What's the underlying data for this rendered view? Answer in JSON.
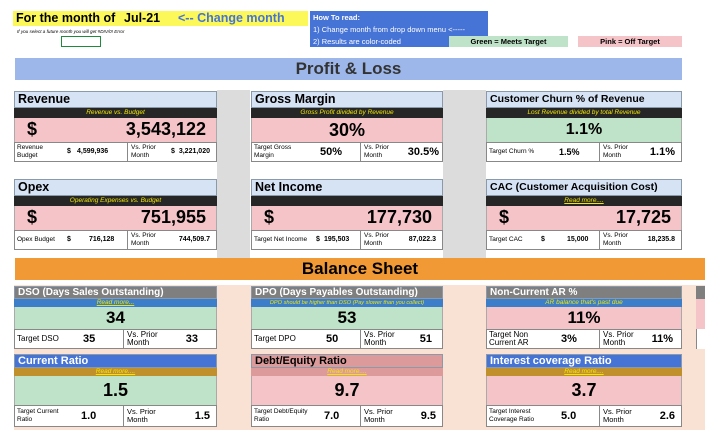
{
  "top": {
    "month_label": "For the month of",
    "month_value": "Jul-21",
    "change_hint": "<-- Change month",
    "future_warning": "If you select a future month you will get #DIV/0! Error",
    "howto_title": "How To read:",
    "howto_1": "1) Change month from drop down menu <-----",
    "howto_2": "2) Results are color-coded",
    "legend_green": "Green = Meets Target",
    "legend_pink": "Pink = Off Target"
  },
  "sections": {
    "pl": "Profit & Loss",
    "bs": "Balance Sheet"
  },
  "colors": {
    "green": "#bfe3c8",
    "pink": "#f5c4c8",
    "peach": "#f7d8c3",
    "header_blue": "#d6e3f5",
    "section_blue": "#9db7ea",
    "section_orange": "#f19a35",
    "gray_hdr": "#7f7f7f",
    "blue_hdr": "#4673d6",
    "rose_hdr": "#dd9a9a",
    "gold_band": "#c0902c"
  },
  "cards": {
    "revenue": {
      "title": "Revenue",
      "sub": "Revenue vs. Budget",
      "currency": "$",
      "value": "3,543,122",
      "target_label": "Revenue Budget",
      "target_cur": "$",
      "target_value": "4,599,936",
      "vs_label": "Vs. Prior Month",
      "vs_cur": "$",
      "vs_value": "3,221,020"
    },
    "gross_margin": {
      "title": "Gross Margin",
      "sub": "Gross Profit divided by Revenue",
      "value": "30%",
      "target_label": "Target Gross Margin",
      "target_value": "50%",
      "vs_label": "Vs. Prior Month",
      "vs_value": "30.5%"
    },
    "churn": {
      "title": "Customer Churn % of Revenue",
      "sub": "Lost Revenue divided by total Revenue",
      "value": "1.1%",
      "target_label": "Target Churn %",
      "target_value": "1.5%",
      "vs_label": "Vs. Prior Month",
      "vs_value": "1.1%"
    },
    "opex": {
      "title": "Opex",
      "sub": "Operating Expenses vs. Budget",
      "currency": "$",
      "value": "751,955",
      "target_label": "Opex Budget",
      "target_cur": "$",
      "target_value": "716,128",
      "vs_label": "Vs. Prior Month",
      "vs_value": "744,509.7"
    },
    "net_income": {
      "title": "Net Income",
      "currency": "$",
      "value": "177,730",
      "target_label": "Target Net Income",
      "target_cur": "$",
      "target_value": "195,503",
      "vs_label": "Vs. Prior Month",
      "vs_value": "87,022.3"
    },
    "cac": {
      "title": "CAC (Customer Acquisition Cost)",
      "sub": "Read more....",
      "currency": "$",
      "value": "17,725",
      "target_label": "Target CAC",
      "target_cur": "$",
      "target_value": "15,000",
      "vs_label": "Vs. Prior Month",
      "vs_value": "18,235.8"
    },
    "dso": {
      "title": "DSO (Days Sales Outstanding)",
      "sub": "Read more...",
      "value": "34",
      "target_label": "Target DSO",
      "target_value": "35",
      "vs_label": "Vs. Prior Month",
      "vs_value": "33"
    },
    "dpo": {
      "title": "DPO (Days Payables Outstanding)",
      "sub": "DPO should be higher than DSO (Pay slower than you collect)",
      "value": "53",
      "target_label": "Target DPO",
      "target_value": "50",
      "vs_label": "Vs. Prior Month",
      "vs_value": "51"
    },
    "noncurrent": {
      "title": "Non-Current AR %",
      "sub": "AR balance that's past due",
      "value": "11%",
      "target_label": "Target Non Current AR",
      "target_value": "3%",
      "vs_label": "Vs. Prior Month",
      "vs_value": "11%"
    },
    "current_ratio": {
      "title": "Current Ratio",
      "sub": "Read more....",
      "value": "1.5",
      "target_label": "Target Current Ratio",
      "target_value": "1.0",
      "vs_label": "Vs. Prior Month",
      "vs_value": "1.5"
    },
    "debt_equity": {
      "title": "Debt/Equity Ratio",
      "sub": "Read more....",
      "value": "9.7",
      "target_label": "Target Debt/Equity Ratio",
      "target_value": "7.0",
      "vs_label": "Vs. Prior Month",
      "vs_value": "9.5"
    },
    "interest": {
      "title": "Interest coverage Ratio",
      "sub": "Read more....",
      "value": "3.7",
      "target_label": "Target Interest Coverage Ratio",
      "target_value": "5.0",
      "vs_label": "Vs. Prior Month",
      "vs_value": "2.6"
    }
  }
}
